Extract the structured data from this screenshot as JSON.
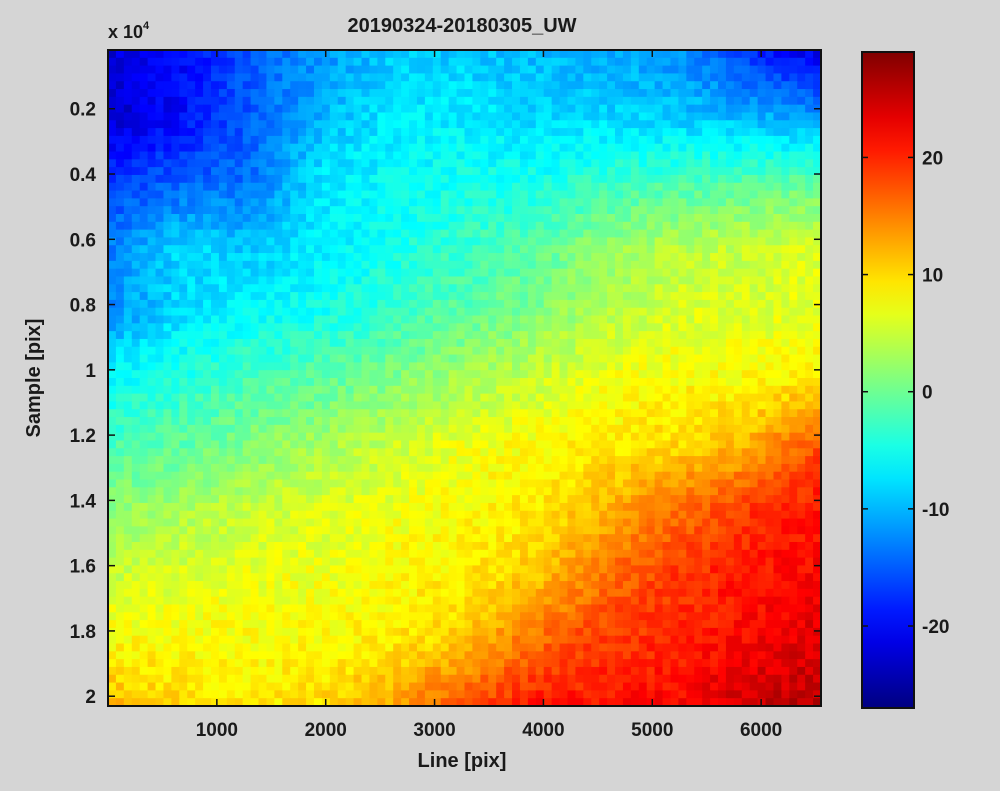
{
  "chart_data": {
    "type": "heatmap",
    "title": "20190324-20180305_UW",
    "xlabel": "Line [pix]",
    "ylabel": "Sample [pix]",
    "y_exponent_label": "x 10",
    "y_exponent_power": "4",
    "xlim": [
      0,
      6550
    ],
    "ylim": [
      200,
      20300
    ],
    "y_reversed": true,
    "x_ticks": [
      1000,
      2000,
      3000,
      4000,
      5000,
      6000
    ],
    "x_tick_labels": [
      "1000",
      "2000",
      "3000",
      "4000",
      "5000",
      "6000"
    ],
    "y_ticks": [
      0.2,
      0.4,
      0.6,
      0.8,
      1,
      1.2,
      1.4,
      1.6,
      1.8,
      2
    ],
    "y_tick_labels": [
      "0.2",
      "0.4",
      "0.6",
      "0.8",
      "1",
      "1.2",
      "1.4",
      "1.6",
      "1.8",
      "2"
    ],
    "colorbar": {
      "colormap": "jet",
      "range": [
        -27,
        29
      ],
      "ticks": [
        20,
        10,
        0,
        -10,
        -20
      ],
      "tick_labels": [
        "20",
        "10",
        "0",
        "-10",
        "-20"
      ]
    },
    "grid_x": [
      0,
      655,
      1310,
      1965,
      2620,
      3275,
      3930,
      4585,
      5240,
      5895,
      6550
    ],
    "grid_y": [
      200,
      2210,
      4220,
      6230,
      8240,
      10250,
      12260,
      14270,
      16280,
      18290,
      20300
    ],
    "z": [
      [
        -22,
        -20,
        -15,
        -12,
        -9,
        -9,
        -10,
        -11,
        -12,
        -18,
        -22
      ],
      [
        -23,
        -20,
        -15,
        -10,
        -7,
        -7,
        -8,
        -8,
        -9,
        -10,
        -12
      ],
      [
        -17,
        -15,
        -14,
        -7,
        -6,
        -5,
        -5,
        -3,
        -2,
        -1,
        -1
      ],
      [
        -13,
        -8,
        -9,
        -7,
        -5,
        -3,
        -1,
        2,
        4,
        5,
        6
      ],
      [
        -12,
        -8,
        -6,
        -5,
        -3,
        -1,
        1,
        4,
        6,
        6,
        7
      ],
      [
        -6,
        -4,
        -2,
        -1,
        1,
        3,
        5,
        7,
        8,
        8,
        9
      ],
      [
        -2,
        -1,
        1,
        3,
        5,
        7,
        8,
        9,
        10,
        12,
        18
      ],
      [
        2,
        3,
        5,
        6,
        7,
        8,
        9,
        12,
        16,
        19,
        21
      ],
      [
        5,
        6,
        7,
        7,
        8,
        9,
        11,
        16,
        19,
        21,
        22
      ],
      [
        8,
        8,
        8,
        8,
        9,
        11,
        16,
        19,
        20,
        22,
        24
      ],
      [
        12,
        10,
        9,
        10,
        13,
        18,
        21,
        21,
        22,
        25,
        26
      ]
    ]
  }
}
